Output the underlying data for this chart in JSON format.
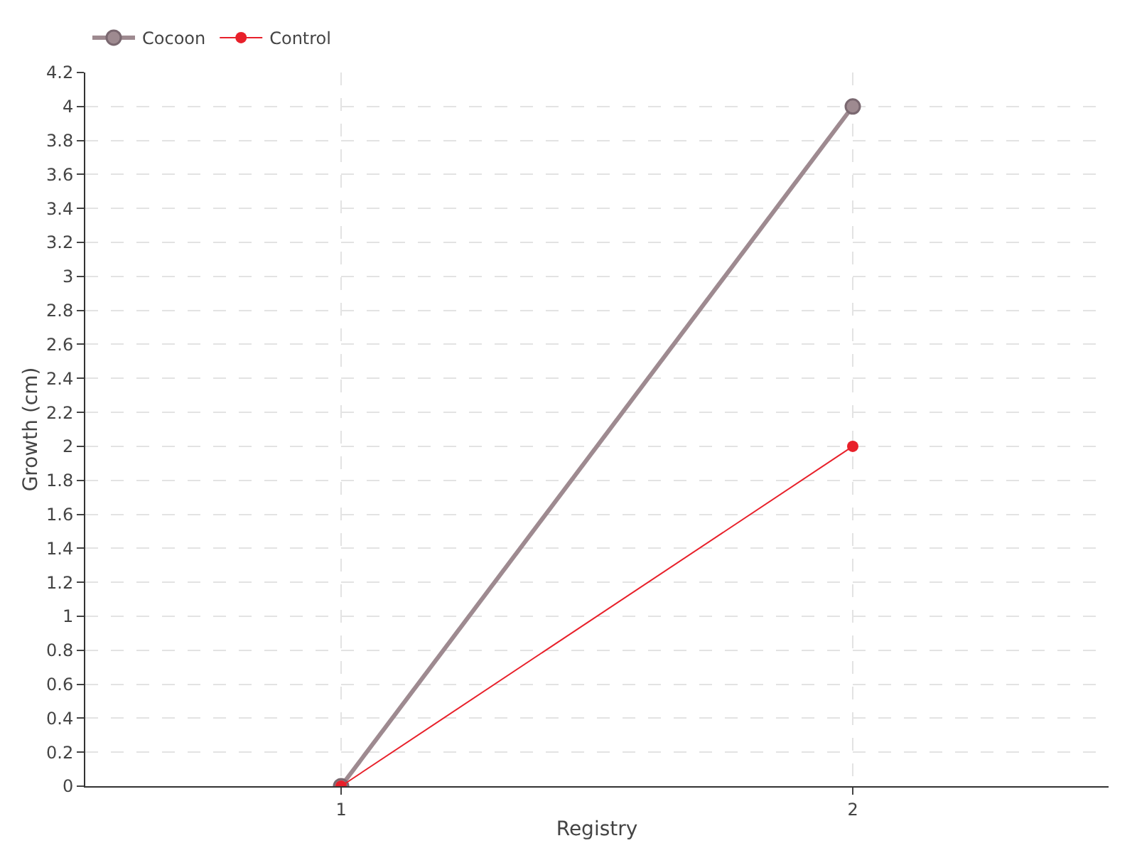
{
  "chart_data": {
    "type": "line",
    "xlabel": "Registry",
    "ylabel": "Growth (cm)",
    "x": [
      1,
      2
    ],
    "series": [
      {
        "name": "Cocoon",
        "color": "#9e8a90",
        "values": [
          0,
          4
        ]
      },
      {
        "name": "Control",
        "color": "#e8202a",
        "values": [
          0,
          2
        ]
      }
    ],
    "xlim": [
      0.5,
      2.5
    ],
    "xticks": [
      1,
      2
    ],
    "ylim": [
      0,
      4.2
    ],
    "yticks": [
      0,
      0.2,
      0.4,
      0.6,
      0.8,
      1,
      1.2,
      1.4,
      1.6,
      1.8,
      2,
      2.2,
      2.4,
      2.6,
      2.8,
      3,
      3.2,
      3.4,
      3.6,
      3.8,
      4,
      4.2
    ],
    "grid": true,
    "legend": "top left",
    "marker": "circle",
    "line_style": "solid"
  }
}
